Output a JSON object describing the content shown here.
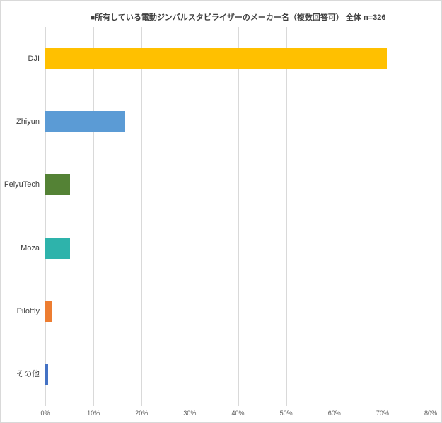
{
  "chart_data": {
    "type": "bar",
    "orientation": "horizontal",
    "title": "■所有している電動ジンバルスタビライザーのメーカー名（複数回答可） 全体 n=326",
    "categories": [
      "DJI",
      "Zhiyun",
      "FeiyuTech",
      "Moza",
      "Pilotfly",
      "その他"
    ],
    "values": [
      70.9,
      16.6,
      5.2,
      5.2,
      1.5,
      0.6
    ],
    "bar_colors": [
      "#FFC000",
      "#5B9BD5",
      "#548235",
      "#2EB3AB",
      "#ED7D31",
      "#4472C4"
    ],
    "x_ticks": [
      "0%",
      "10%",
      "20%",
      "30%",
      "40%",
      "50%",
      "60%",
      "70%",
      "80%"
    ],
    "xlim": [
      0,
      80
    ],
    "xlabel": "",
    "ylabel": "",
    "grid": true,
    "legend": false
  },
  "colors": {
    "background": "#FFFFFF",
    "chart_border": "#D9D9D9",
    "gridline": "#D9D9D9",
    "title_text": "#404040",
    "category_label_text": "#404040",
    "tick_label_text": "#595959"
  }
}
